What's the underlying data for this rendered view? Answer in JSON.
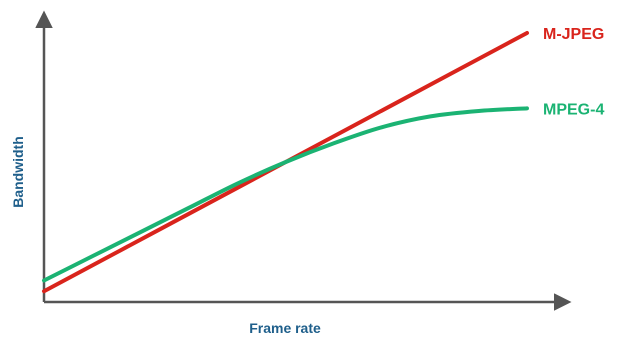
{
  "colors": {
    "axis": "#555555",
    "axis_label": "#1f5f8b",
    "mjpeg": "#d9241c",
    "mpeg4": "#1bb373"
  },
  "chart_data": {
    "type": "line",
    "title": "",
    "xlabel": "Frame rate",
    "ylabel": "Bandwidth",
    "xlim": [
      0,
      1
    ],
    "ylim": [
      0,
      1
    ],
    "grid": false,
    "ticks": false,
    "series": [
      {
        "name": "M-JPEG",
        "color": "#d9241c",
        "x": [
          0,
          0.25,
          0.5,
          0.75,
          1.0
        ],
        "y": [
          0.04,
          0.28,
          0.52,
          0.76,
          1.0
        ]
      },
      {
        "name": "MPEG-4",
        "color": "#1bb373",
        "x": [
          0,
          0.1,
          0.2,
          0.3,
          0.4,
          0.5,
          0.6,
          0.7,
          0.8,
          0.9,
          1.0
        ],
        "y": [
          0.08,
          0.17,
          0.26,
          0.35,
          0.44,
          0.52,
          0.59,
          0.65,
          0.69,
          0.71,
          0.72
        ]
      }
    ]
  }
}
